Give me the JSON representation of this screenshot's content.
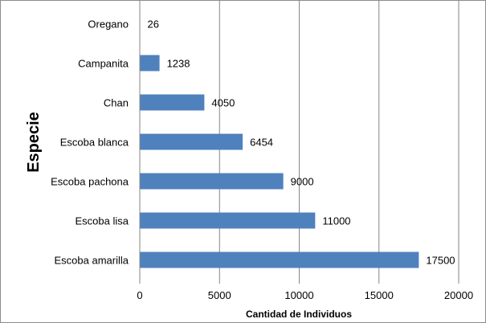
{
  "chart_data": {
    "type": "bar",
    "orientation": "horizontal",
    "title": "",
    "xlabel": "Cantidad de Individuos",
    "ylabel": "Especie",
    "xlim": [
      0,
      20000
    ],
    "xticks": [
      0,
      5000,
      10000,
      15000,
      20000
    ],
    "grid": "vertical",
    "categories": [
      "Oregano",
      "Campanita",
      "Chan",
      "Escoba blanca",
      "Escoba pachona",
      "Escoba lisa",
      "Escoba amarilla"
    ],
    "values": [
      26,
      1238,
      4050,
      6454,
      9000,
      11000,
      17500
    ],
    "bar_color": "#4f81bd"
  }
}
